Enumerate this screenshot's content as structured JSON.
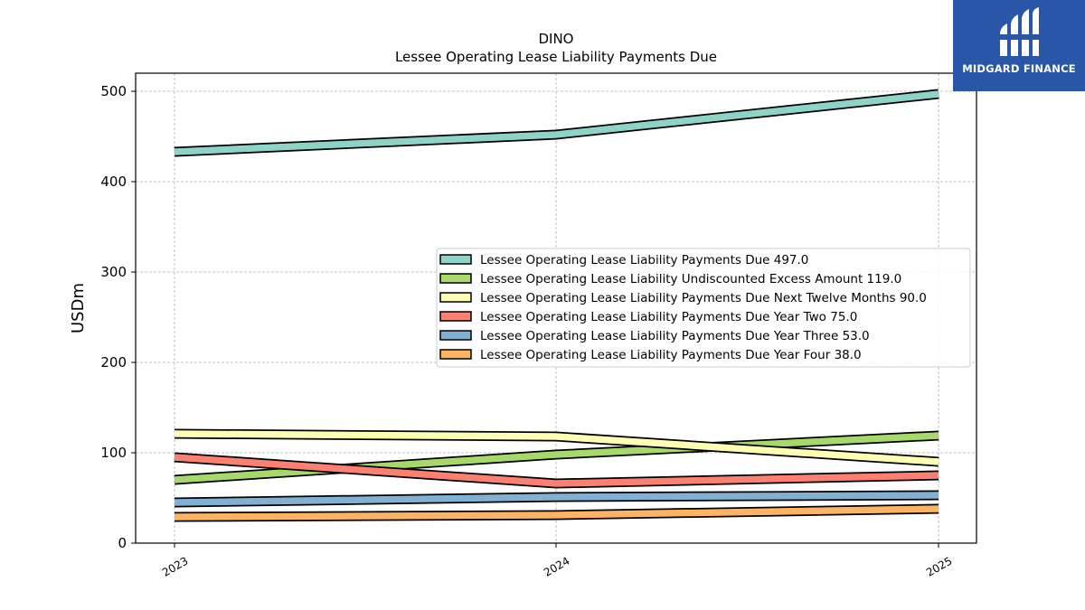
{
  "chart_data": {
    "type": "line",
    "title": "DINO",
    "subtitle": "Lessee Operating Lease Liability Payments Due",
    "xlabel": "",
    "ylabel": "USDm",
    "categories": [
      "2023",
      "2024",
      "2025"
    ],
    "ylim": [
      0,
      520
    ],
    "yticks": [
      0,
      100,
      200,
      300,
      400,
      500
    ],
    "grid": true,
    "legend_position": "center-right",
    "series": [
      {
        "name": "Lessee Operating Lease Liability Payments Due",
        "legend": "Lessee Operating Lease Liability Payments Due  497.0",
        "values": [
          433,
          452,
          497
        ],
        "color": "#8dd3c7"
      },
      {
        "name": "Lessee Operating Lease Liability Undiscounted Excess Amount",
        "legend": "Lessee Operating Lease Liability Undiscounted Excess Amount  119.0",
        "values": [
          70,
          98,
          119
        ],
        "color": "#a6d96a"
      },
      {
        "name": "Lessee Operating Lease Liability Payments Due Next Twelve Months",
        "legend": "Lessee Operating Lease Liability Payments Due Next Twelve Months  90.0",
        "values": [
          121,
          118,
          90
        ],
        "color": "#ffffb3"
      },
      {
        "name": "Lessee Operating Lease Liability Payments Due Year Two",
        "legend": "Lessee Operating Lease Liability Payments Due Year Two  75.0",
        "values": [
          95,
          66,
          75
        ],
        "color": "#fb8072"
      },
      {
        "name": "Lessee Operating Lease Liability Payments Due Year Three",
        "legend": "Lessee Operating Lease Liability Payments Due Year Three  53.0",
        "values": [
          45,
          51,
          53
        ],
        "color": "#80b1d3"
      },
      {
        "name": "Lessee Operating Lease Liability Payments Due Year Four",
        "legend": "Lessee Operating Lease Liability Payments Due Year Four  38.0",
        "values": [
          29,
          31,
          38
        ],
        "color": "#fdb462"
      }
    ]
  },
  "logo": {
    "text": "MIDGARD FINANCE",
    "icon": "midgard-logo-icon",
    "background": "#2a56a8"
  }
}
